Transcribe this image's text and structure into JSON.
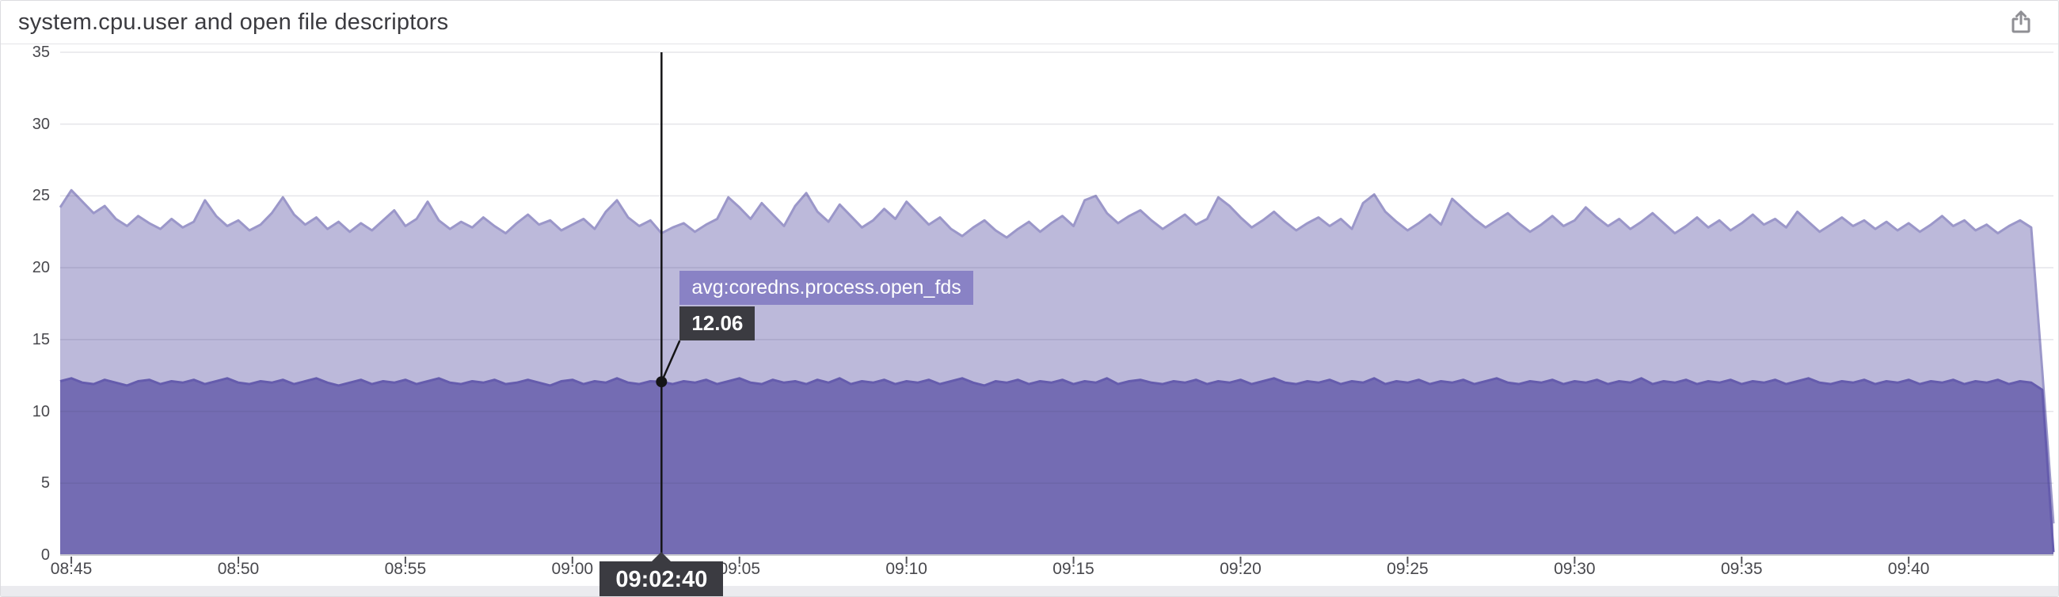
{
  "header": {
    "title": "system.cpu.user and open file descriptors",
    "share_icon": "share-export-icon"
  },
  "colors": {
    "cpu_fill": "#bcb9da",
    "cpu_stroke": "#9b97c9",
    "fds_fill": "#746cb3",
    "fds_stroke": "#655cad",
    "grid": "rgba(72,72,105,0.14)",
    "axis_line": "#c9c9cf",
    "tick_mark": "#55555a",
    "crosshair": "#141416",
    "tooltip_label_bg": "#8680c4",
    "tooltip_dark_bg": "#3b3b41"
  },
  "tooltip": {
    "series_label": "avg:coredns.process.open_fds",
    "value": "12.06",
    "time": "09:02:40",
    "point_index": 54
  },
  "chart_data": {
    "type": "area",
    "title": "system.cpu.user and open file descriptors",
    "xlabel": "",
    "ylabel": "",
    "ylim": [
      0,
      35
    ],
    "grid": true,
    "legend_position": "none",
    "x_start": "08:44:40",
    "x_step_seconds": 20,
    "y_ticks": [
      35,
      30,
      25,
      20,
      15,
      10,
      5,
      0
    ],
    "x_ticks": [
      {
        "label": "08:45",
        "index": 1
      },
      {
        "label": "08:50",
        "index": 16
      },
      {
        "label": "08:55",
        "index": 31
      },
      {
        "label": "09:00",
        "index": 46
      },
      {
        "label": "09:05",
        "index": 61
      },
      {
        "label": "09:10",
        "index": 76
      },
      {
        "label": "09:15",
        "index": 91
      },
      {
        "label": "09:20",
        "index": 106
      },
      {
        "label": "09:25",
        "index": 121
      },
      {
        "label": "09:30",
        "index": 136
      },
      {
        "label": "09:35",
        "index": 151
      },
      {
        "label": "09:40",
        "index": 166
      }
    ],
    "series": [
      {
        "name": "system.cpu.user",
        "values": [
          24.2,
          25.4,
          24.6,
          23.8,
          24.3,
          23.4,
          22.9,
          23.6,
          23.1,
          22.7,
          23.4,
          22.8,
          23.2,
          24.7,
          23.6,
          22.9,
          23.3,
          22.6,
          23.0,
          23.8,
          24.9,
          23.7,
          23.0,
          23.5,
          22.7,
          23.2,
          22.5,
          23.1,
          22.6,
          23.3,
          24.0,
          22.9,
          23.4,
          24.6,
          23.3,
          22.7,
          23.2,
          22.8,
          23.5,
          22.9,
          22.4,
          23.1,
          23.7,
          23.0,
          23.3,
          22.6,
          23.0,
          23.4,
          22.7,
          23.9,
          24.7,
          23.5,
          22.9,
          23.3,
          22.4,
          22.8,
          23.1,
          22.5,
          23.0,
          23.4,
          24.9,
          24.2,
          23.4,
          24.5,
          23.7,
          22.9,
          24.3,
          25.2,
          23.9,
          23.2,
          24.4,
          23.6,
          22.8,
          23.3,
          24.1,
          23.4,
          24.6,
          23.8,
          23.0,
          23.5,
          22.7,
          22.2,
          22.8,
          23.3,
          22.6,
          22.1,
          22.7,
          23.2,
          22.5,
          23.1,
          23.6,
          22.9,
          24.7,
          25.0,
          23.8,
          23.1,
          23.6,
          24.0,
          23.3,
          22.7,
          23.2,
          23.7,
          23.0,
          23.4,
          24.9,
          24.3,
          23.5,
          22.8,
          23.3,
          23.9,
          23.2,
          22.6,
          23.1,
          23.5,
          22.9,
          23.4,
          22.7,
          24.5,
          25.1,
          23.9,
          23.2,
          22.6,
          23.1,
          23.7,
          23.0,
          24.8,
          24.1,
          23.4,
          22.8,
          23.3,
          23.8,
          23.1,
          22.5,
          23.0,
          23.6,
          22.9,
          23.3,
          24.2,
          23.5,
          22.9,
          23.4,
          22.7,
          23.2,
          23.8,
          23.1,
          22.4,
          22.9,
          23.5,
          22.8,
          23.3,
          22.6,
          23.1,
          23.7,
          23.0,
          23.4,
          22.8,
          23.9,
          23.2,
          22.5,
          23.0,
          23.5,
          22.9,
          23.3,
          22.7,
          23.2,
          22.6,
          23.1,
          22.5,
          23.0,
          23.6,
          22.9,
          23.3,
          22.6,
          23.0,
          22.4,
          22.9,
          23.3,
          22.8,
          12.8,
          2.2
        ]
      },
      {
        "name": "avg:coredns.process.open_fds",
        "values": [
          12.1,
          12.3,
          12.0,
          11.9,
          12.2,
          12.0,
          11.8,
          12.1,
          12.2,
          11.9,
          12.1,
          12.0,
          12.2,
          11.9,
          12.1,
          12.3,
          12.0,
          11.9,
          12.1,
          12.0,
          12.2,
          11.9,
          12.1,
          12.3,
          12.0,
          11.8,
          12.0,
          12.2,
          11.9,
          12.1,
          12.0,
          12.2,
          11.9,
          12.1,
          12.3,
          12.0,
          11.9,
          12.1,
          12.0,
          12.2,
          11.9,
          12.0,
          12.2,
          12.0,
          11.8,
          12.1,
          12.2,
          11.9,
          12.1,
          12.0,
          12.3,
          12.0,
          11.9,
          12.1,
          12.06,
          11.9,
          12.1,
          12.0,
          12.2,
          11.9,
          12.1,
          12.3,
          12.0,
          11.9,
          12.2,
          12.0,
          12.1,
          11.9,
          12.2,
          12.0,
          12.3,
          11.9,
          12.1,
          12.0,
          12.2,
          11.9,
          12.1,
          12.0,
          12.2,
          11.9,
          12.1,
          12.3,
          12.0,
          11.8,
          12.1,
          12.0,
          12.2,
          11.9,
          12.1,
          12.0,
          12.2,
          11.9,
          12.1,
          12.0,
          12.3,
          11.9,
          12.1,
          12.2,
          12.0,
          11.9,
          12.1,
          12.0,
          12.2,
          11.9,
          12.1,
          12.0,
          12.2,
          11.9,
          12.1,
          12.3,
          12.0,
          11.9,
          12.1,
          12.0,
          12.2,
          11.9,
          12.1,
          12.0,
          12.3,
          11.9,
          12.1,
          12.0,
          12.2,
          11.9,
          12.1,
          12.0,
          12.2,
          11.9,
          12.1,
          12.3,
          12.0,
          11.9,
          12.1,
          12.0,
          12.2,
          11.9,
          12.1,
          12.0,
          12.2,
          11.9,
          12.1,
          12.0,
          12.3,
          11.9,
          12.1,
          12.0,
          12.2,
          11.9,
          12.1,
          12.0,
          12.2,
          11.9,
          12.1,
          12.0,
          12.2,
          11.9,
          12.1,
          12.3,
          12.0,
          11.9,
          12.1,
          12.0,
          12.2,
          11.9,
          12.1,
          12.0,
          12.2,
          11.9,
          12.1,
          12.0,
          12.2,
          11.9,
          12.1,
          12.0,
          12.2,
          11.9,
          12.1,
          12.0,
          11.5,
          0.2
        ]
      }
    ]
  }
}
